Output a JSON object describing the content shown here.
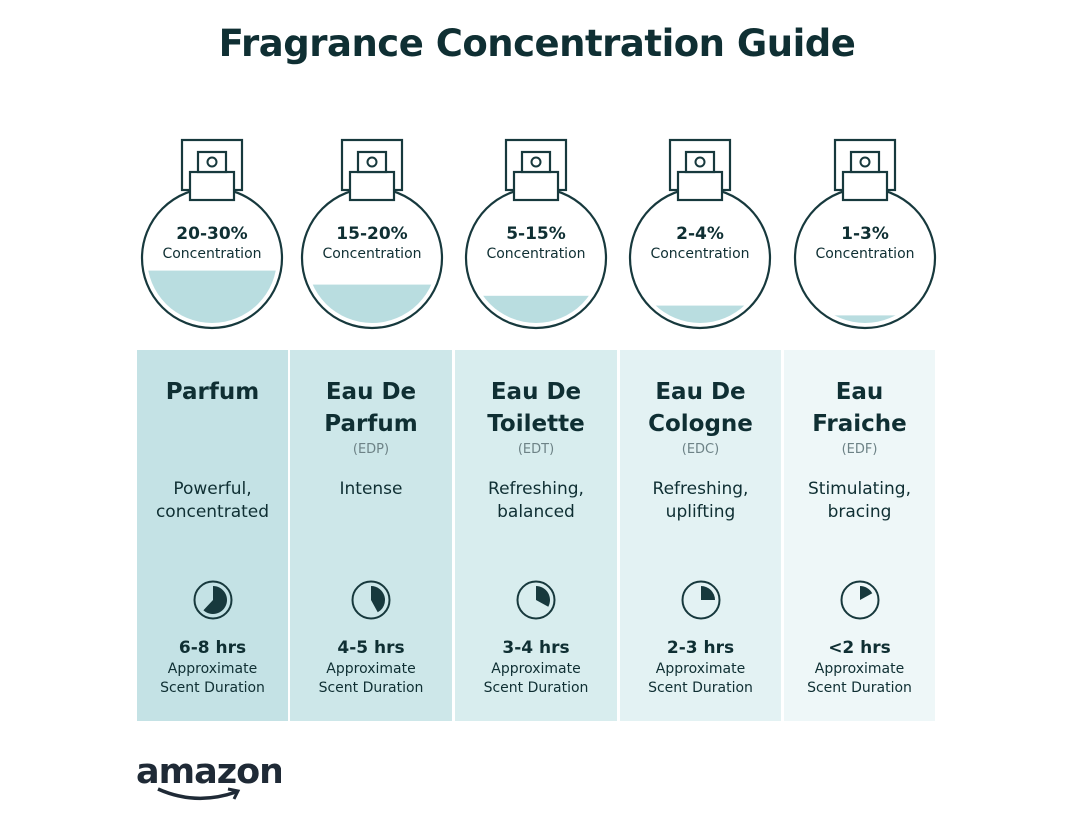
{
  "title": "Fragrance Concentration Guide",
  "approx_label_1": "Approximate",
  "approx_label_2": "Scent Duration",
  "concentration_label": "Concentration",
  "logo_text": "amazon",
  "colors": {
    "text": "#0f2f33",
    "liquid": "#b9dde0",
    "outline": "#17393d"
  },
  "types": [
    {
      "percent": "20-30%",
      "name": [
        "Parfum",
        ""
      ],
      "abbr": "",
      "desc": [
        "Powerful,",
        "concentrated"
      ],
      "duration": "6-8 hrs",
      "fill_level": 0.41,
      "clock_fraction": 0.62,
      "bg": "#c4e2e5"
    },
    {
      "percent": "15-20%",
      "name": [
        "Eau De",
        "Parfum"
      ],
      "abbr": "(EDP)",
      "desc": [
        "Intense",
        ""
      ],
      "duration": "4-5 hrs",
      "fill_level": 0.31,
      "clock_fraction": 0.42,
      "bg": "#cde7e9"
    },
    {
      "percent": "5-15%",
      "name": [
        "Eau De",
        "Toilette"
      ],
      "abbr": "(EDT)",
      "desc": [
        "Refreshing,",
        "balanced"
      ],
      "duration": "3-4 hrs",
      "fill_level": 0.23,
      "clock_fraction": 0.33,
      "bg": "#d8edee"
    },
    {
      "percent": "2-4%",
      "name": [
        "Eau De",
        "Cologne"
      ],
      "abbr": "(EDC)",
      "desc": [
        "Refreshing,",
        "uplifting"
      ],
      "duration": "2-3 hrs",
      "fill_level": 0.16,
      "clock_fraction": 0.25,
      "bg": "#e3f2f3"
    },
    {
      "percent": "1-3%",
      "name": [
        "Eau",
        "Fraiche"
      ],
      "abbr": "(EDF)",
      "desc": [
        "Stimulating,",
        "bracing"
      ],
      "duration": "<2 hrs",
      "fill_level": 0.09,
      "clock_fraction": 0.17,
      "bg": "#eef7f8"
    }
  ]
}
